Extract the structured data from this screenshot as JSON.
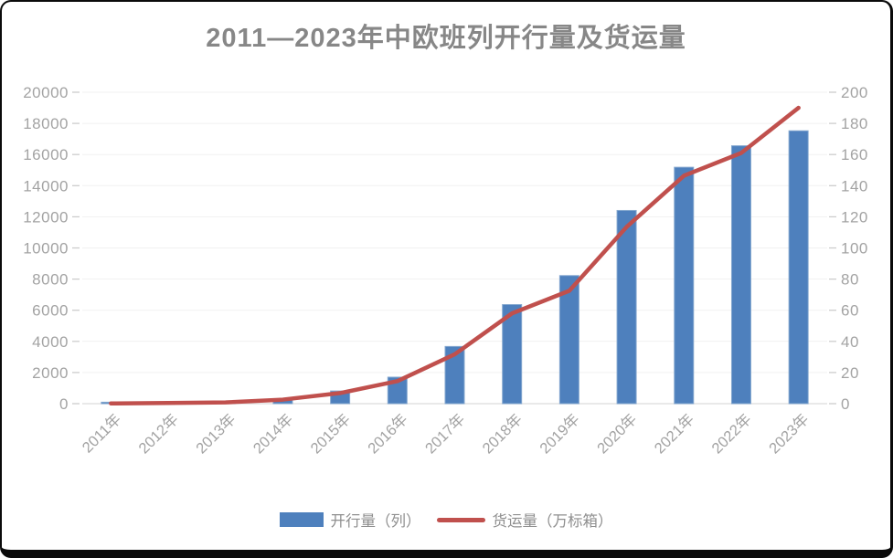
{
  "card": {
    "title": "2011—2023年中欧班列开行量及货运量"
  },
  "legend": {
    "items": [
      {
        "label": "开行量（列）",
        "swatch": "bar-swatch",
        "color": "#4E80BD"
      },
      {
        "label": "货运量（万标箱）",
        "swatch": "line-swatch",
        "color": "#C0504D"
      }
    ]
  },
  "chart_data": {
    "type": "bar",
    "title": "2011—2023年中欧班列开行量及货运量",
    "categories": [
      "2011年",
      "2012年",
      "2013年",
      "2014年",
      "2015年",
      "2016年",
      "2017年",
      "2018年",
      "2019年",
      "2020年",
      "2021年",
      "2022年",
      "2023年"
    ],
    "series": [
      {
        "name": "开行量（列）",
        "type": "bar",
        "axis": "left",
        "color": "#4E80BD",
        "stroke": "#84A7CF",
        "values": [
          17,
          42,
          80,
          308,
          815,
          1702,
          3673,
          6363,
          8225,
          12406,
          15183,
          16562,
          17523
        ]
      },
      {
        "name": "货运量（万标箱）",
        "type": "line",
        "axis": "right",
        "color": "#C0504D",
        "values": [
          0.14,
          0.42,
          0.8,
          2.6,
          6.8,
          14.5,
          31.7,
          58,
          72.5,
          113.5,
          146.4,
          161,
          190
        ]
      }
    ],
    "left_axis": {
      "min": 0,
      "max": 20000,
      "step": 2000,
      "labels": [
        "0",
        "2000",
        "4000",
        "6000",
        "8000",
        "10000",
        "12000",
        "14000",
        "16000",
        "18000",
        "20000"
      ]
    },
    "right_axis": {
      "min": 0,
      "max": 200,
      "step": 20,
      "labels": [
        "0",
        "20",
        "40",
        "60",
        "80",
        "100",
        "120",
        "140",
        "160",
        "180",
        "200"
      ]
    },
    "grid": true,
    "legend_position": "bottom",
    "style": {
      "grid_color": "#f1f1f1",
      "baseline_color": "#dcdcdc",
      "tick_color": "#c9c9c9",
      "axis_label_color": "#a3a3a3",
      "title_color": "#878787",
      "legend_text_color": "#8f8f8f",
      "background": "#ffffff",
      "frame_border_color": "#0a0a0a"
    }
  }
}
